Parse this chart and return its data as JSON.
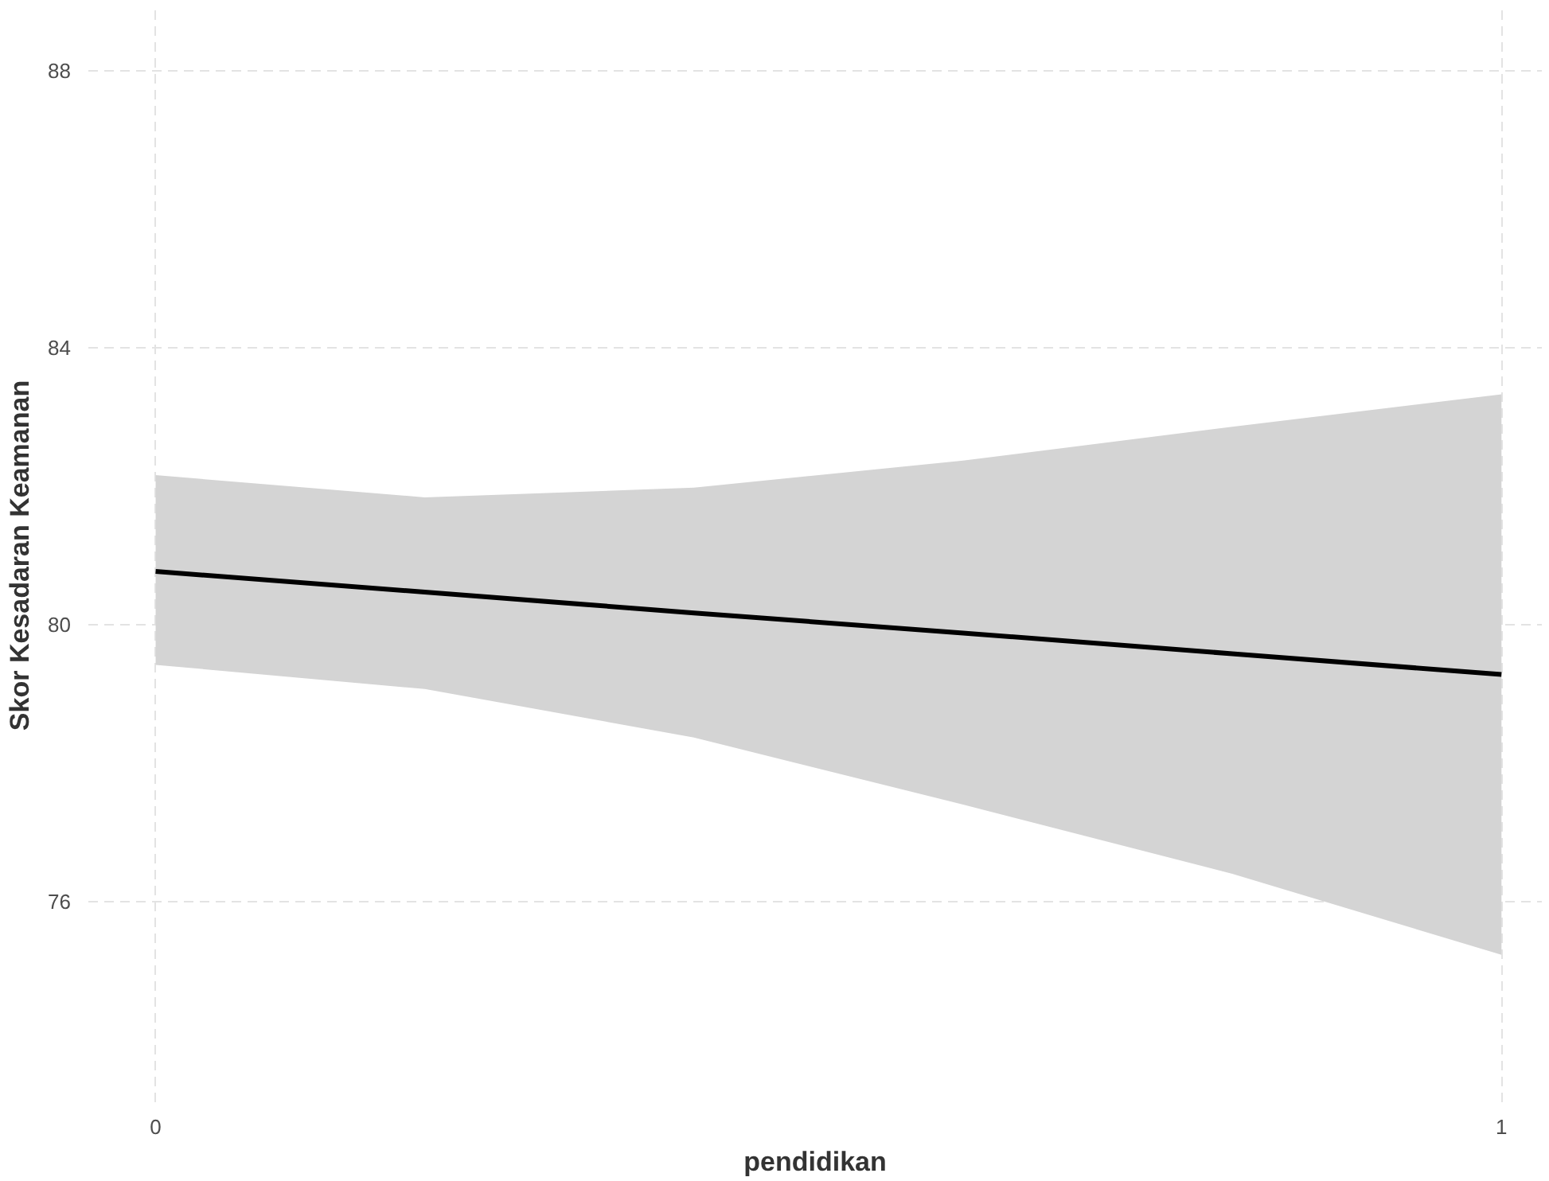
{
  "chart_data": {
    "type": "line",
    "xlabel": "pendidikan",
    "ylabel": "Skor Kesadaran Keamanan",
    "x": [
      0,
      0.2,
      0.4,
      0.6,
      0.8,
      1
    ],
    "series": [
      {
        "color": "#000000",
        "values": [
          80.77,
          80.47,
          80.17,
          79.88,
          79.58,
          79.28
        ],
        "lower": [
          79.42,
          79.07,
          78.37,
          77.4,
          76.4,
          75.23
        ],
        "upper": [
          82.16,
          81.84,
          81.98,
          82.37,
          82.86,
          83.33
        ]
      }
    ],
    "xlim": [
      -0.05,
      1.03
    ],
    "ylim": [
      73.1,
      88.9
    ],
    "xticks": [
      0,
      1
    ],
    "yticks": [
      76,
      80,
      84,
      88
    ],
    "grid": true,
    "line_style": "solid",
    "marker": "none"
  }
}
